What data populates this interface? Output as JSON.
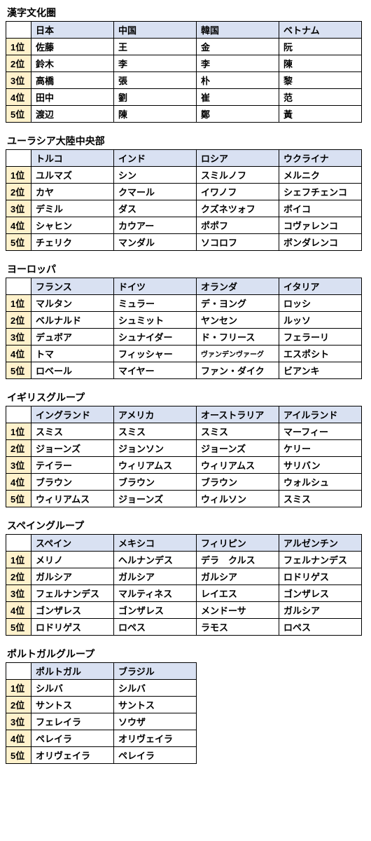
{
  "ranks": [
    "1位",
    "2位",
    "3位",
    "4位",
    "5位"
  ],
  "sections": [
    {
      "title": "漢字文化圏",
      "countries": [
        "日本",
        "中国",
        "韓国",
        "ベトナム"
      ],
      "rows": [
        [
          "佐藤",
          "王",
          "金",
          "阮"
        ],
        [
          "鈴木",
          "李",
          "李",
          "陳"
        ],
        [
          "高橋",
          "張",
          "朴",
          "黎"
        ],
        [
          "田中",
          "劉",
          "崔",
          "范"
        ],
        [
          "渡辺",
          "陳",
          "鄭",
          "黃"
        ]
      ]
    },
    {
      "title": "ユーラシア大陸中央部",
      "countries": [
        "トルコ",
        "インド",
        "ロシア",
        "ウクライナ"
      ],
      "rows": [
        [
          "ユルマズ",
          "シン",
          "スミルノフ",
          "メルニク"
        ],
        [
          "カヤ",
          "クマール",
          "イワノフ",
          "シェフチェンコ"
        ],
        [
          "デミル",
          "ダス",
          "クズネツォフ",
          "ボイコ"
        ],
        [
          "シャヒン",
          "カウアー",
          "ポポフ",
          "コヴァレンコ"
        ],
        [
          "チェリク",
          "マンダル",
          "ソコロフ",
          "ボンダレンコ"
        ]
      ]
    },
    {
      "title": "ヨーロッパ",
      "countries": [
        "フランス",
        "ドイツ",
        "オランダ",
        "イタリア"
      ],
      "rows": [
        [
          "マルタン",
          "ミュラー",
          "デ・ヨング",
          "ロッシ"
        ],
        [
          "ベルナルド",
          "シュミット",
          "ヤンセン",
          "ルッソ"
        ],
        [
          "デュボア",
          "シュナイダー",
          "ド・フリース",
          "フェラーリ"
        ],
        [
          "トマ",
          "フィッシャー",
          "ヴァンデンヴァーグ",
          "エスポシト"
        ],
        [
          "ロベール",
          "マイヤー",
          "ファン・ダイク",
          "ビアンキ"
        ]
      ],
      "smallCells": [
        [
          3,
          2
        ]
      ]
    },
    {
      "title": "イギリスグループ",
      "countries": [
        "イングランド",
        "アメリカ",
        "オーストラリア",
        "アイルランド"
      ],
      "rows": [
        [
          "スミス",
          "スミス",
          "スミス",
          "マーフィー"
        ],
        [
          "ジョーンズ",
          "ジョンソン",
          "ジョーンズ",
          "ケリー"
        ],
        [
          "テイラー",
          "ウィリアムス",
          "ウィリアムス",
          "サリバン"
        ],
        [
          "ブラウン",
          "ブラウン",
          "ブラウン",
          "ウォルシュ"
        ],
        [
          "ウィリアムス",
          "ジョーンズ",
          "ウィルソン",
          "スミス"
        ]
      ]
    },
    {
      "title": "スペイングループ",
      "countries": [
        "スペイン",
        "メキシコ",
        "フィリピン",
        "アルゼンチン"
      ],
      "rows": [
        [
          "メリノ",
          "ヘルナンデス",
          "デラ　クルス",
          "フェルナンデス"
        ],
        [
          "ガルシア",
          "ガルシア",
          "ガルシア",
          "ロドリゲス"
        ],
        [
          "フェルナンデス",
          "マルティネス",
          "レイエス",
          "ゴンザレス"
        ],
        [
          "ゴンザレス",
          "ゴンザレス",
          "メンドーサ",
          "ガルシア"
        ],
        [
          "ロドリゲス",
          "ロペス",
          "ラモス",
          "ロペス"
        ]
      ]
    },
    {
      "title": "ポルトガルグループ",
      "countries": [
        "ポルトガル",
        "ブラジル"
      ],
      "rows": [
        [
          "シルバ",
          "シルバ"
        ],
        [
          "サントス",
          "サントス"
        ],
        [
          "フェレイラ",
          "ソウザ"
        ],
        [
          "ペレイラ",
          "オリヴェイラ"
        ],
        [
          "オリヴェイラ",
          "ペレイラ"
        ]
      ]
    }
  ]
}
